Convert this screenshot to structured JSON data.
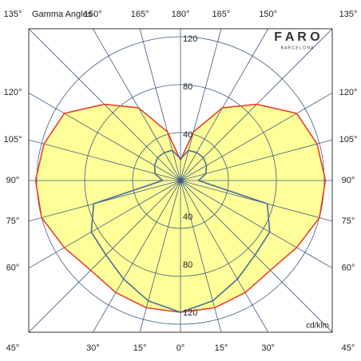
{
  "chart_data": {
    "type": "polar",
    "title": "Gamma Angles",
    "brand": "F A R O",
    "brand_subtitle": "B A R C E L O N A",
    "unit_label": "cd/klm",
    "x": [
      0,
      15,
      30,
      45,
      60,
      75,
      90,
      105,
      120,
      135,
      150,
      165,
      180
    ],
    "series": [
      {
        "color": "#e8402a",
        "fill": "#ffff99",
        "values": [
          110,
          110,
          108,
          106,
          112,
          120,
          121,
          118,
          112,
          90,
          70,
          42,
          17
        ]
      },
      {
        "color": "#4a6f96",
        "values": [
          110,
          104,
          95,
          88,
          86,
          75,
          15,
          22,
          25,
          27,
          27,
          26,
          18
        ]
      }
    ],
    "rlim": [
      0,
      120
    ],
    "rticks": [
      40,
      80,
      120
    ],
    "xticks": [
      {
        "value": 0,
        "label": "0°"
      },
      {
        "value": 15,
        "label": "15°"
      },
      {
        "value": 30,
        "label": "30°"
      },
      {
        "value": 45,
        "label": "45°"
      },
      {
        "value": 60,
        "label": "60°"
      },
      {
        "value": 75,
        "label": "75°"
      },
      {
        "value": 90,
        "label": "90°"
      },
      {
        "value": 105,
        "label": "105°"
      },
      {
        "value": 120,
        "label": "120°"
      },
      {
        "value": 135,
        "label": "135°"
      },
      {
        "value": 150,
        "label": "150°"
      },
      {
        "value": 165,
        "label": "165°"
      },
      {
        "value": 180,
        "label": "180°"
      }
    ],
    "grid": true
  }
}
